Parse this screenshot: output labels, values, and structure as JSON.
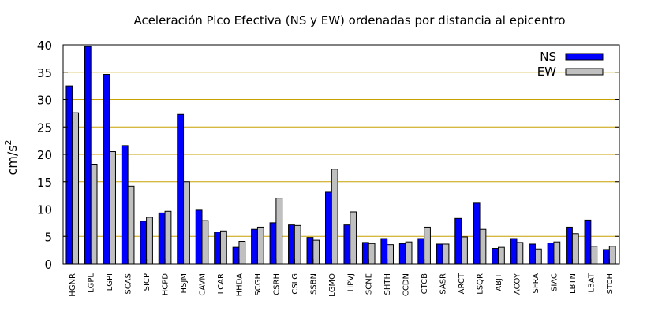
{
  "chart_data": {
    "type": "bar",
    "title": "Aceleración Pico Efectiva (NS y EW) ordenadas por distancia al epicentro",
    "ylabel": "cm/s",
    "ylabel_sup": "2",
    "xlabel": "",
    "ylim": [
      0,
      40
    ],
    "yticks": [
      0,
      5,
      10,
      15,
      20,
      25,
      30,
      35,
      40
    ],
    "grid": true,
    "legend_position": "top-right",
    "categories": [
      "HGNR",
      "LGPL",
      "LGPI",
      "SCAS",
      "SICP",
      "HCPD",
      "HSJM",
      "CAVM",
      "LCAR",
      "HHDA",
      "SCGH",
      "CSRH",
      "CSLG",
      "SSBN",
      "LGMO",
      "HPVJ",
      "SCNE",
      "SHTH",
      "CCDN",
      "CTCB",
      "SASR",
      "ARCT",
      "LSQR",
      "ABJT",
      "ACOY",
      "SFRA",
      "SIAC",
      "LBTN",
      "LBAT",
      "STCH"
    ],
    "series": [
      {
        "name": "NS",
        "color": "#0000ff",
        "values": [
          32.5,
          39.7,
          34.6,
          21.6,
          7.8,
          9.3,
          27.3,
          9.8,
          5.8,
          3.0,
          6.3,
          7.5,
          7.1,
          4.8,
          13.1,
          7.1,
          3.9,
          4.6,
          3.7,
          4.6,
          3.6,
          8.3,
          11.1,
          2.8,
          4.6,
          3.6,
          3.8,
          6.7,
          8.0,
          2.6
        ]
      },
      {
        "name": "EW",
        "color": "#c0c0c0",
        "values": [
          27.6,
          18.2,
          20.5,
          14.2,
          8.5,
          9.6,
          15.0,
          7.9,
          6.0,
          4.1,
          6.7,
          12.0,
          7.0,
          4.3,
          17.3,
          9.5,
          3.7,
          3.5,
          4.0,
          6.7,
          3.6,
          4.9,
          6.3,
          3.0,
          3.9,
          2.7,
          4.0,
          5.5,
          3.2,
          3.2
        ]
      }
    ]
  }
}
